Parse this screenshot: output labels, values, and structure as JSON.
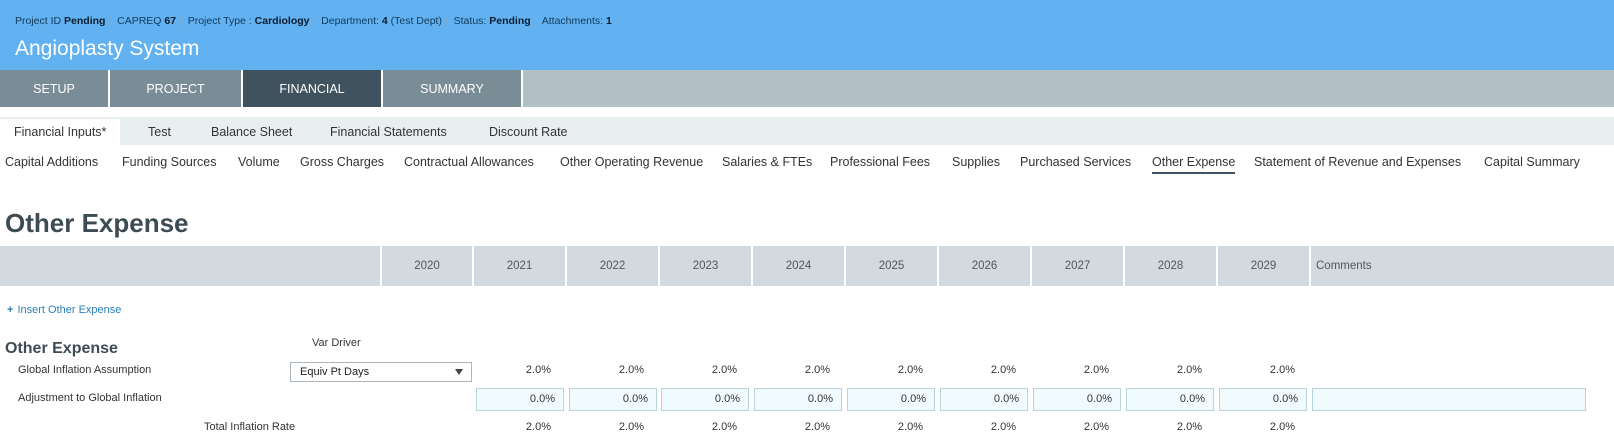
{
  "header": {
    "project_id_label": "Project ID",
    "project_id_value": "Pending",
    "capreq_label": "CAPREQ",
    "capreq_value": "67",
    "project_type_label": "Project Type :",
    "project_type_value": "Cardiology",
    "department_label": "Department:",
    "department_value": "4",
    "department_note": "(Test Dept)",
    "status_label": "Status:",
    "status_value": "Pending",
    "attachments_label": "Attachments:",
    "attachments_value": "1",
    "title": "Angioplasty System"
  },
  "main_tabs": [
    "SETUP",
    "PROJECT",
    "FINANCIAL",
    "SUMMARY"
  ],
  "sub_tabs": [
    "Financial Inputs*",
    "Test",
    "Balance Sheet",
    "Financial Statements",
    "Discount Rate"
  ],
  "section_nav": [
    "Capital Additions",
    "Funding Sources",
    "Volume",
    "Gross Charges",
    "Contractual Allowances",
    "Other Operating Revenue",
    "Salaries & FTEs",
    "Professional Fees",
    "Supplies",
    "Purchased Services",
    "Other Expense",
    "Statement of Revenue and Expenses",
    "Capital Summary"
  ],
  "page_title": "Other Expense",
  "years": [
    "2020",
    "2021",
    "2022",
    "2023",
    "2024",
    "2025",
    "2026",
    "2027",
    "2028",
    "2029"
  ],
  "comments_header": "Comments",
  "insert_link": "Insert Other Expense",
  "group": {
    "title": "Other Expense",
    "driver_header": "Var Driver",
    "global_inflation": {
      "label": "Global Inflation Assumption",
      "driver": "Equiv Pt Days",
      "values": [
        "2.0%",
        "2.0%",
        "2.0%",
        "2.0%",
        "2.0%",
        "2.0%",
        "2.0%",
        "2.0%",
        "2.0%"
      ]
    },
    "adjustment": {
      "label": "Adjustment to Global Inflation",
      "values": [
        "0.0%",
        "0.0%",
        "0.0%",
        "0.0%",
        "0.0%",
        "0.0%",
        "0.0%",
        "0.0%",
        "0.0%"
      ]
    },
    "total": {
      "label": "Total Inflation Rate",
      "values": [
        "2.0%",
        "2.0%",
        "2.0%",
        "2.0%",
        "2.0%",
        "2.0%",
        "2.0%",
        "2.0%",
        "2.0%"
      ]
    }
  }
}
